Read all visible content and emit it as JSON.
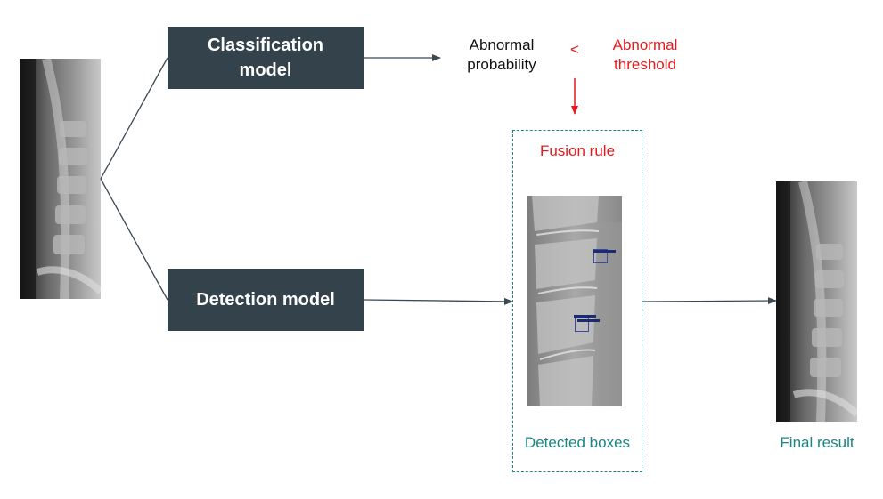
{
  "nodes": {
    "classification_model": {
      "label": "Classification\nmodel"
    },
    "detection_model": {
      "label": "Detection model"
    },
    "abnormal_probability": {
      "label": "Abnormal\nprobability"
    },
    "comparator": {
      "label": "<"
    },
    "abnormal_threshold": {
      "label": "Abnormal\nthreshold"
    },
    "fusion_rule": {
      "label": "Fusion rule"
    },
    "detected_boxes": {
      "label": "Detected boxes"
    },
    "final_result": {
      "label": "Final result"
    }
  },
  "colors": {
    "box_fill": "#33424b",
    "box_text": "#ffffff",
    "highlight": "#e8191e",
    "teal": "#1a8585",
    "line": "#3b4a52",
    "detection_box": "#1e2a6e"
  }
}
